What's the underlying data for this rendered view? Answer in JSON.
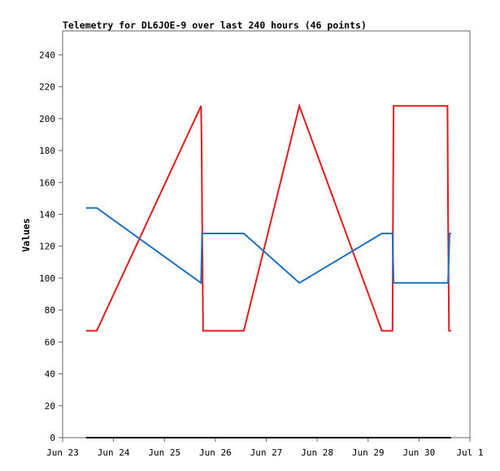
{
  "chart_data": {
    "type": "line",
    "title": "Telemetry for DL6JOE-9 over last 240 hours (46 points)",
    "xlabel": "",
    "ylabel": "Values",
    "ylim": [
      0,
      255
    ],
    "yticks": [
      0,
      20,
      40,
      60,
      80,
      100,
      120,
      140,
      160,
      180,
      200,
      220,
      240
    ],
    "xlim": [
      0,
      8
    ],
    "xticks": [
      {
        "x": 0,
        "label": "Jun 23"
      },
      {
        "x": 1,
        "label": "Jun 24"
      },
      {
        "x": 2,
        "label": "Jun 25"
      },
      {
        "x": 3,
        "label": "Jun 26"
      },
      {
        "x": 4,
        "label": "Jun 27"
      },
      {
        "x": 5,
        "label": "Jun 28"
      },
      {
        "x": 6,
        "label": "Jun 29"
      },
      {
        "x": 7,
        "label": "Jun 30"
      },
      {
        "x": 8,
        "label": "Jul 1"
      }
    ],
    "grid": false,
    "series": [
      {
        "color": "#e41a1c",
        "points": [
          [
            0.46,
            67
          ],
          [
            0.67,
            67
          ],
          [
            2.72,
            208
          ],
          [
            2.73,
            184
          ],
          [
            2.74,
            140
          ],
          [
            2.76,
            67
          ],
          [
            3.56,
            67
          ],
          [
            4.65,
            208
          ],
          [
            6.27,
            67
          ],
          [
            6.48,
            67
          ],
          [
            6.49,
            140
          ],
          [
            6.5,
            208
          ],
          [
            7.56,
            208
          ],
          [
            7.57,
            140
          ],
          [
            7.59,
            67
          ],
          [
            7.63,
            67
          ]
        ]
      },
      {
        "color": "#1f6fbf",
        "points": [
          [
            0.46,
            144
          ],
          [
            0.67,
            144
          ],
          [
            2.72,
            97
          ],
          [
            2.74,
            128
          ],
          [
            3.56,
            128
          ],
          [
            4.65,
            97
          ],
          [
            6.27,
            128
          ],
          [
            6.48,
            128
          ],
          [
            6.5,
            97
          ],
          [
            7.57,
            97
          ],
          [
            7.6,
            128
          ],
          [
            7.63,
            128
          ]
        ]
      },
      {
        "color": "#000000",
        "points": [
          [
            0.46,
            0
          ],
          [
            7.63,
            0
          ]
        ]
      }
    ]
  }
}
